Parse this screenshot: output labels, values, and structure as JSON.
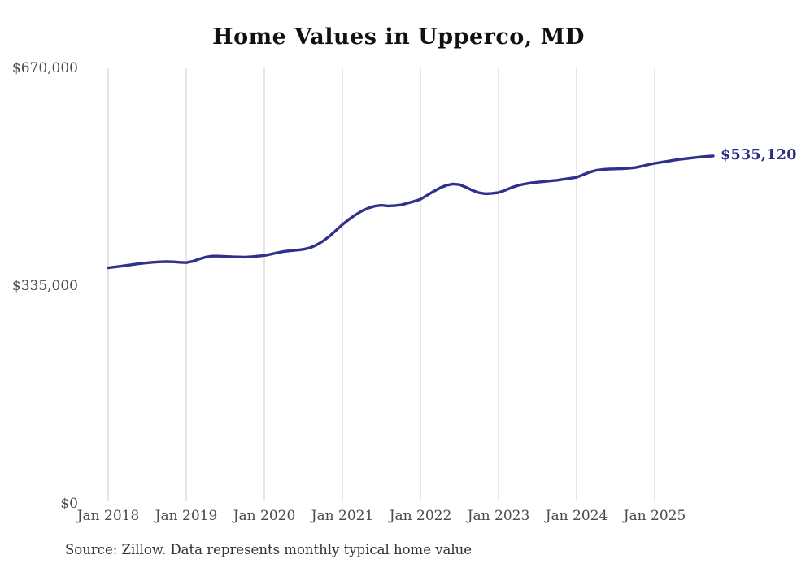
{
  "page": {
    "title": "Home Values in Upperco, MD",
    "source_note": "Source: Zillow. Data represents monthly typical home value"
  },
  "chart_data": {
    "type": "line",
    "title": "Home Values in Upperco, MD",
    "xlabel": "",
    "ylabel": "",
    "x_start": "Jan 2018",
    "x_frequency": "monthly",
    "x_end": "Oct 2025",
    "x_tick_labels": [
      "Jan 2018",
      "Jan 2019",
      "Jan 2020",
      "Jan 2021",
      "Jan 2022",
      "Jan 2023",
      "Jan 2024",
      "Jan 2025"
    ],
    "y_ticks": [
      {
        "label": "$670,000",
        "value": 670000
      },
      {
        "label": "$335,000",
        "value": 335000
      },
      {
        "label": "$0",
        "value": 0
      }
    ],
    "ylim": [
      0,
      670000
    ],
    "grid": "vertical-only",
    "legend_position": "none",
    "end_label": "$535,120",
    "end_value": 535120,
    "line_color": "#32308e",
    "end_label_color": "#2e2d87",
    "grid_color": "#cccccc",
    "series": [
      {
        "name": "Typical home value",
        "values": [
          363000,
          364200,
          365500,
          367000,
          368400,
          369700,
          370800,
          371600,
          372200,
          372500,
          372200,
          371500,
          371000,
          373000,
          376500,
          379500,
          381000,
          381000,
          380500,
          380000,
          379700,
          379500,
          380000,
          381000,
          382000,
          384000,
          386300,
          388200,
          389400,
          390200,
          391500,
          393800,
          398000,
          404000,
          411500,
          420500,
          429500,
          437500,
          444500,
          450500,
          455000,
          458000,
          459200,
          458300,
          458600,
          459800,
          462500,
          465200,
          468500,
          474500,
          480500,
          486000,
          490000,
          492000,
          491000,
          487000,
          482000,
          478500,
          477000,
          477600,
          478800,
          482300,
          486500,
          489800,
          492000,
          493600,
          494700,
          495700,
          496700,
          497800,
          499200,
          500700,
          502300,
          506200,
          510200,
          513000,
          514400,
          515000,
          515300,
          515600,
          516200,
          517200,
          519200,
          521700,
          523800,
          525400,
          527000,
          528600,
          530100,
          531300,
          532400,
          533500,
          534400,
          535120
        ]
      }
    ]
  }
}
